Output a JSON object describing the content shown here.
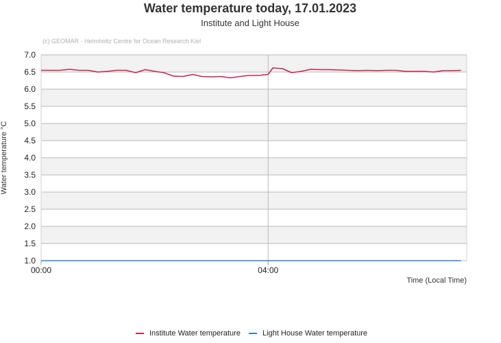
{
  "chart_data": {
    "type": "line",
    "title": "Water temperature today, 17.01.2023",
    "subtitle": "Institute and Light House",
    "credit": "(c) GEOMAR - Helmholtz Centre for Ocean Research Kiel",
    "ylabel": "Water temperature °C",
    "xlabel": "Time (Local Time)",
    "ylim": [
      1.0,
      7.0
    ],
    "yticks": [
      "1.0",
      "1.5",
      "2.0",
      "2.5",
      "3.0",
      "3.5",
      "4.0",
      "4.5",
      "5.0",
      "5.5",
      "6.0",
      "6.5",
      "7.0"
    ],
    "xlim": [
      0,
      7.5
    ],
    "xtick_labels": [
      "00:00",
      "04:00"
    ],
    "xtick_values": [
      0,
      4
    ],
    "grid": "horizontal bands",
    "legend_position": "bottom-center",
    "series": [
      {
        "name": "Institute Water temperature",
        "color": "#c8244e",
        "x": [
          0,
          0.167,
          0.333,
          0.5,
          0.667,
          0.833,
          1.0,
          1.167,
          1.333,
          1.5,
          1.667,
          1.833,
          2.0,
          2.167,
          2.333,
          2.5,
          2.667,
          2.833,
          3.0,
          3.167,
          3.333,
          3.5,
          3.667,
          3.833,
          4.0,
          4.083,
          4.25,
          4.417,
          4.583,
          4.75,
          4.917,
          5.083,
          5.25,
          5.417,
          5.583,
          5.75,
          5.917,
          6.083,
          6.25,
          6.417,
          6.583,
          6.75,
          6.917,
          7.083,
          7.25,
          7.4
        ],
        "values": [
          6.55,
          6.55,
          6.55,
          6.58,
          6.55,
          6.55,
          6.5,
          6.52,
          6.55,
          6.55,
          6.48,
          6.57,
          6.52,
          6.48,
          6.38,
          6.37,
          6.43,
          6.37,
          6.36,
          6.37,
          6.33,
          6.37,
          6.4,
          6.4,
          6.43,
          6.62,
          6.6,
          6.48,
          6.52,
          6.58,
          6.57,
          6.57,
          6.56,
          6.55,
          6.54,
          6.55,
          6.54,
          6.55,
          6.55,
          6.52,
          6.52,
          6.52,
          6.5,
          6.54,
          6.54,
          6.55
        ]
      },
      {
        "name": "Light House Water temperature",
        "color": "#2f7ed8",
        "x": [
          0,
          7.4
        ],
        "values": [
          1.0,
          1.0
        ]
      }
    ]
  }
}
